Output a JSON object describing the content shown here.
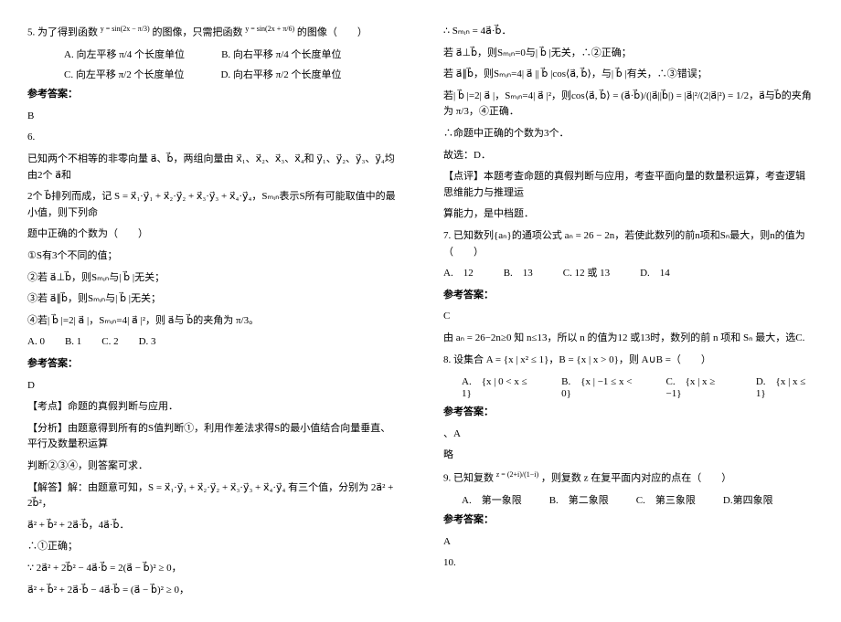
{
  "left": {
    "q5": {
      "stem_prefix": "5. 为了得到函数",
      "formula1": "y = sin(2x − π/3)",
      "stem_mid": "的图像，只需把函数",
      "formula2": "y = sin(2x + π/6)",
      "stem_suffix": "的图像（　　）",
      "optA": "A. 向左平移 π/4 个长度单位",
      "optB": "B. 向右平移 π/4 个长度单位",
      "optC": "C. 向左平移 π/2 个长度单位",
      "optD": "D. 向右平移 π/2 个长度单位",
      "ans_label": "参考答案：",
      "ans": "B"
    },
    "q6": {
      "num": "6.",
      "p1": "已知两个不相等的非零向量 a⃗、b⃗，两组向量由 x⃗₁、x⃗₂、x⃗₃、x⃗₄和 y⃗₁、y⃗₂、y⃗₃、y⃗₄均由2个 a⃗和",
      "p2": "2个 b⃗排列而成，记 S = x⃗₁·y⃗₁ + x⃗₂·y⃗₂ + x⃗₃·y⃗₃ + x⃗₄·y⃗₄，Sₘᵢₙ表示S所有可能取值中的最小值，则下列命",
      "p3": "题中正确的个数为（　　）",
      "s1": "①S有3个不同的值；",
      "s2": "②若 a⃗⊥b⃗，则Sₘᵢₙ与| b⃗ |无关；",
      "s3": "③若 a⃗∥b⃗，则Sₘᵢₙ与| b⃗ |无关；",
      "s4": "④若| b⃗ |=2| a⃗ |，Sₘᵢₙ=4| a⃗ |²，则 a⃗与 b⃗的夹角为 π/3。",
      "opts": "A. 0　　B. 1　　C. 2　　D. 3",
      "ans_label": "参考答案：",
      "ans": "D",
      "kaodian": "【考点】命题的真假判断与应用．",
      "fenxi1": "【分析】由题意得到所有的S值判断①，利用作差法求得S的最小值结合向量垂直、平行及数量积运算",
      "fenxi2": "判断②③④，则答案可求．",
      "jie1": "【解答】解：由题意可知，S = x⃗₁·y⃗₁ + x⃗₂·y⃗₂ + x⃗₃·y⃗₃ + x⃗₄·y⃗₄ 有三个值，分别为 2a⃗² + 2b⃗²，",
      "jie2": "a⃗² + b⃗² + 2a⃗·b⃗，4a⃗·b⃗．",
      "jie3": "∴①正确；",
      "jie4": "∵ 2a⃗² + 2b⃗² − 4a⃗·b⃗ = 2(a⃗ − b⃗)² ≥ 0，",
      "jie5": "a⃗² + b⃗² + 2a⃗·b⃗ − 4a⃗·b⃗ = (a⃗ − b⃗)² ≥ 0，"
    }
  },
  "right": {
    "cont": {
      "l1": "∴ Sₘᵢₙ = 4a⃗·b⃗．",
      "l2": "若 a⃗⊥b⃗，则Sₘᵢₙ=0与| b⃗ |无关，∴②正确；",
      "l3": "若 a⃗∥b⃗，则Sₘᵢₙ=4| a⃗ || b⃗ |cos⟨a⃗, b⃗⟩，与| b⃗ |有关，∴③错误；",
      "l4": "若| b⃗ |=2| a⃗ |，Sₘᵢₙ=4| a⃗ |²，则cos⟨a⃗, b⃗⟩ = (a⃗·b⃗)/(|a⃗||b⃗|) = |a⃗|²/(2|a⃗|²) = 1/2，a⃗与b⃗的夹角为 π/3，④正确．",
      "l5": "∴命题中正确的个数为3个．",
      "l6": "故选：D．",
      "l7": "【点评】本题考查命题的真假判断与应用，考查平面向量的数量积运算，考查逻辑思维能力与推理运",
      "l8": "算能力，是中档题．"
    },
    "q7": {
      "stem": "7. 已知数列{aₙ}的通项公式 aₙ = 26 − 2n，若使此数列的前n项和Sₙ最大，则n的值为（　　）",
      "opts": "A.　12　　　B.　13　　　C. 12 或 13　　　D.　14",
      "ans_label": "参考答案：",
      "ans": "C",
      "exp": "由 aₙ = 26−2n≥0 知 n≤13，所以 n 的值为12 或13时，数列的前 n 项和 Sₙ 最大，选C."
    },
    "q8": {
      "stem": "8. 设集合 A = {x | x² ≤ 1}，B = {x | x > 0}，则 A∪B =（　　）",
      "optA": "A.　{x | 0 < x ≤ 1}",
      "optB": "B.　{x | −1 ≤ x < 0}",
      "optC": "C.　{x | x ≥ −1}",
      "optD": "D.　{x | x ≤ 1}",
      "ans_label": "参考答案：",
      "ans": "、A",
      "exp": "略"
    },
    "q9": {
      "stem_prefix": "9. 已知复数",
      "formula": "z = (2+i)/(1−i)",
      "stem_suffix": "，则复数 z 在复平面内对应的点在（　　）",
      "optA": "A.　第一象限",
      "optB": "B.　第二象限",
      "optC": "C.　第三象限",
      "optD": "D.第四象限",
      "ans_label": "参考答案：",
      "ans": "A"
    },
    "q10": {
      "num": "10."
    }
  }
}
